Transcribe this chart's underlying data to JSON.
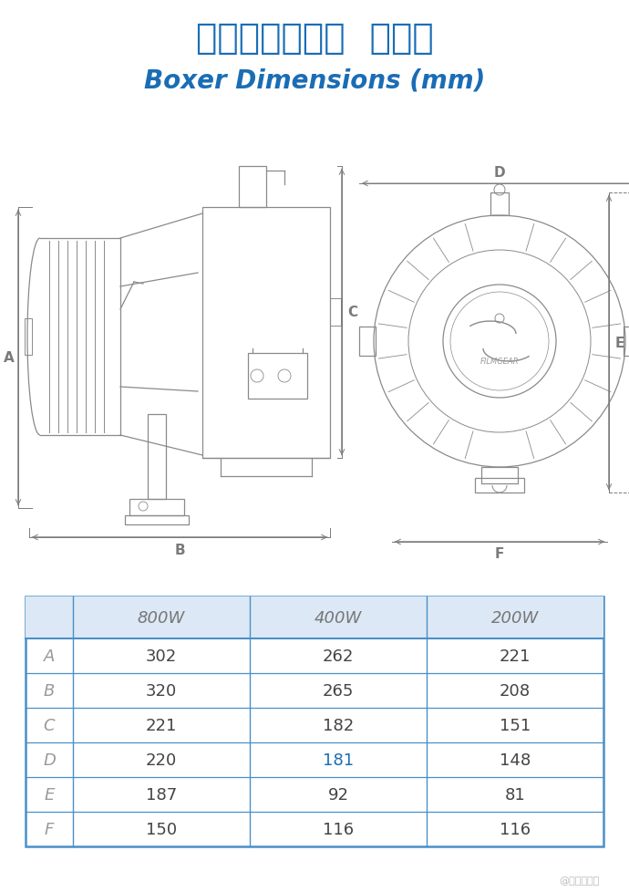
{
  "title_chinese": "手提式直射镝灯",
  "title_suffix": "规格表",
  "title_english": "Boxer Dimensions (mm)",
  "title_color": "#1a6db5",
  "background_color": "#ffffff",
  "table_header_bg": "#dce8f5",
  "table_border_color": "#4a90c8",
  "table_row_labels": [
    "A",
    "B",
    "C",
    "D",
    "E",
    "F"
  ],
  "table_col_labels": [
    "800W",
    "400W",
    "200W"
  ],
  "table_data": [
    [
      302,
      262,
      221
    ],
    [
      320,
      265,
      208
    ],
    [
      221,
      182,
      151
    ],
    [
      220,
      181,
      148
    ],
    [
      187,
      92,
      81
    ],
    [
      150,
      116,
      116
    ]
  ],
  "table_highlight_rows": [
    3
  ],
  "table_highlight_col": 1,
  "table_highlight_color": "#1a6db5",
  "arrow_color": "#7a7a7a",
  "watermark": "@影视工业网",
  "diagram_line_color": "#8a8a8a",
  "diagram_lw": 0.9
}
